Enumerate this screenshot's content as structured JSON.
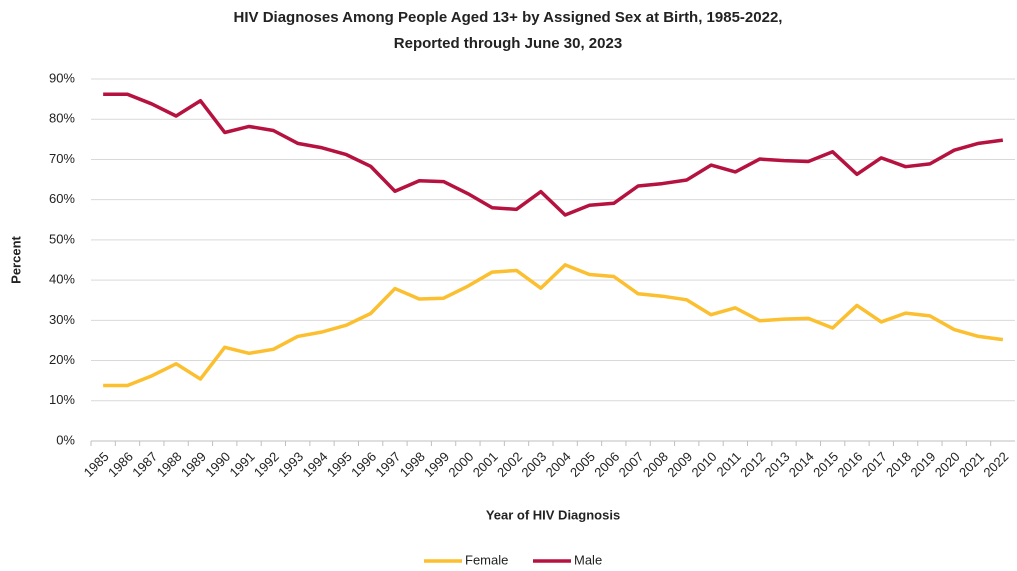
{
  "chart_data": {
    "type": "line",
    "title": "HIV Diagnoses Among People Aged 13+ by Assigned Sex at Birth, 1985-2022,",
    "subtitle": "Reported through June 30, 2023",
    "x_label": "Year of HIV Diagnosis",
    "y_label": "Percent",
    "categories": [
      "1985",
      "1986",
      "1987",
      "1988",
      "1989",
      "1990",
      "1991",
      "1992",
      "1993",
      "1994",
      "1995",
      "1996",
      "1997",
      "1998",
      "1999",
      "2000",
      "2001",
      "2002",
      "2003",
      "2004",
      "2005",
      "2006",
      "2007",
      "2008",
      "2009",
      "2010",
      "2011",
      "2012",
      "2013",
      "2014",
      "2015",
      "2016",
      "2017",
      "2018",
      "2019",
      "2020",
      "2021",
      "2022"
    ],
    "series": [
      {
        "name": "Female",
        "color": "#fbbf2f",
        "values": [
          13.8,
          13.8,
          16.2,
          19.2,
          15.4,
          23.3,
          21.8,
          22.8,
          26.0,
          27.1,
          28.8,
          31.7,
          37.9,
          35.3,
          35.5,
          38.5,
          42.0,
          42.4,
          38.0,
          43.8,
          41.4,
          40.9,
          36.6,
          36.0,
          35.1,
          31.4,
          33.1,
          29.9,
          30.3,
          30.5,
          28.1,
          33.7,
          29.6,
          31.8,
          31.1,
          27.7,
          26.0,
          25.2
        ]
      },
      {
        "name": "Male",
        "color": "#b5123f",
        "values": [
          86.2,
          86.2,
          83.8,
          80.8,
          84.6,
          76.7,
          78.2,
          77.2,
          74.0,
          72.9,
          71.2,
          68.3,
          62.1,
          64.7,
          64.5,
          61.5,
          58.0,
          57.6,
          62.0,
          56.2,
          58.6,
          59.1,
          63.4,
          64.0,
          64.9,
          68.6,
          66.9,
          70.1,
          69.7,
          69.5,
          71.9,
          66.3,
          70.4,
          68.2,
          68.9,
          72.3,
          74.0,
          74.8
        ]
      }
    ],
    "ylim": [
      0,
      90
    ],
    "yticks": [
      {
        "value": 0,
        "label": "0%"
      },
      {
        "value": 10,
        "label": "10%"
      },
      {
        "value": 20,
        "label": "20%"
      },
      {
        "value": 30,
        "label": "30%"
      },
      {
        "value": 40,
        "label": "40%"
      },
      {
        "value": 50,
        "label": "50%"
      },
      {
        "value": 60,
        "label": "60%"
      },
      {
        "value": 70,
        "label": "70%"
      },
      {
        "value": 80,
        "label": "80%"
      },
      {
        "value": 90,
        "label": "90%"
      }
    ],
    "grid": true,
    "legend": "bottom"
  }
}
